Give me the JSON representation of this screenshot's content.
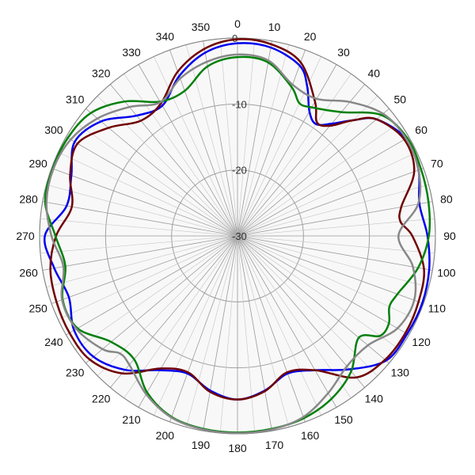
{
  "chart_data": {
    "type": "polar-line",
    "title": "",
    "angle_direction": "clockwise",
    "zero_angle": "top",
    "r_range": [
      -30,
      0
    ],
    "r_ticks": [
      -30,
      -20,
      -10,
      0
    ],
    "r_tick_labels": [
      "-30",
      "-20",
      "-10",
      "0"
    ],
    "angle_ticks": [
      0,
      10,
      20,
      30,
      40,
      50,
      60,
      70,
      80,
      90,
      100,
      110,
      120,
      130,
      140,
      150,
      160,
      170,
      180,
      190,
      200,
      210,
      220,
      230,
      240,
      250,
      260,
      270,
      280,
      290,
      300,
      310,
      320,
      330,
      340,
      350
    ],
    "angle_tick_labels": [
      "0",
      "10",
      "20",
      "30",
      "40",
      "50",
      "60",
      "70",
      "80",
      "90",
      "100",
      "110",
      "120",
      "130",
      "140",
      "150",
      "160",
      "170",
      "180",
      "190",
      "200",
      "210",
      "220",
      "230",
      "240",
      "250",
      "260",
      "270",
      "280",
      "290",
      "300",
      "310",
      "320",
      "330",
      "340",
      "350"
    ],
    "grid": true,
    "legend": "none",
    "series": [
      {
        "color": "#0000ee",
        "points": [
          [
            0,
            -0.8
          ],
          [
            10,
            -1.0
          ],
          [
            20,
            -2.5
          ],
          [
            25,
            -5.0
          ],
          [
            30,
            -8.2
          ],
          [
            35,
            -9.3
          ],
          [
            40,
            -7.8
          ],
          [
            45,
            -5.2
          ],
          [
            50,
            -2.5
          ],
          [
            60,
            -0.5
          ],
          [
            70,
            -0.8
          ],
          [
            80,
            -2.0
          ],
          [
            90,
            -1.2
          ],
          [
            100,
            -0.5
          ],
          [
            110,
            -0.2
          ],
          [
            120,
            -0.3
          ],
          [
            130,
            -0.6
          ],
          [
            140,
            -3.6
          ],
          [
            150,
            -6.5
          ],
          [
            160,
            -7.8
          ],
          [
            170,
            -6.2
          ],
          [
            180,
            -5.2
          ],
          [
            190,
            -6.2
          ],
          [
            200,
            -7.8
          ],
          [
            210,
            -6.5
          ],
          [
            220,
            -3.5
          ],
          [
            230,
            -1.5
          ],
          [
            240,
            -1.4
          ],
          [
            250,
            -2.8
          ],
          [
            260,
            -1.8
          ],
          [
            270,
            -0.8
          ],
          [
            280,
            -3.7
          ],
          [
            290,
            -3.2
          ],
          [
            300,
            -1.5
          ],
          [
            310,
            -3.0
          ],
          [
            320,
            -6.2
          ],
          [
            330,
            -7.2
          ],
          [
            340,
            -4.2
          ],
          [
            350,
            -1.8
          ]
        ]
      },
      {
        "color": "#700000",
        "points": [
          [
            0,
            -0.2
          ],
          [
            10,
            -0.5
          ],
          [
            20,
            -2.0
          ],
          [
            30,
            -6.5
          ],
          [
            35,
            -9.0
          ],
          [
            40,
            -8.2
          ],
          [
            45,
            -5.2
          ],
          [
            50,
            -2.5
          ],
          [
            60,
            -0.8
          ],
          [
            70,
            -1.5
          ],
          [
            80,
            -4.8
          ],
          [
            85,
            -5.2
          ],
          [
            90,
            -3.5
          ],
          [
            100,
            -1.3
          ],
          [
            110,
            -0.8
          ],
          [
            120,
            -0.6
          ],
          [
            130,
            -0.8
          ],
          [
            140,
            -2.0
          ],
          [
            150,
            -6.5
          ],
          [
            160,
            -8.0
          ],
          [
            170,
            -6.1
          ],
          [
            180,
            -5.2
          ],
          [
            190,
            -6.0
          ],
          [
            200,
            -8.0
          ],
          [
            210,
            -6.8
          ],
          [
            220,
            -2.8
          ],
          [
            230,
            -0.8
          ],
          [
            240,
            -0.6
          ],
          [
            250,
            -0.8
          ],
          [
            260,
            -1.2
          ],
          [
            270,
            -2.5
          ],
          [
            280,
            -4.5
          ],
          [
            290,
            -3.0
          ],
          [
            300,
            -2.0
          ],
          [
            310,
            -4.5
          ],
          [
            320,
            -7.2
          ],
          [
            330,
            -6.8
          ],
          [
            340,
            -3.5
          ],
          [
            350,
            -1.2
          ]
        ]
      },
      {
        "color": "#00800a",
        "points": [
          [
            0,
            -2.9
          ],
          [
            10,
            -3.3
          ],
          [
            20,
            -6.0
          ],
          [
            25,
            -7.8
          ],
          [
            30,
            -7.5
          ],
          [
            40,
            -5.5
          ],
          [
            50,
            -1.5
          ],
          [
            60,
            -0.3
          ],
          [
            70,
            -0.4
          ],
          [
            80,
            -0.6
          ],
          [
            90,
            -1.0
          ],
          [
            100,
            -2.2
          ],
          [
            110,
            -4.2
          ],
          [
            115,
            -4.6
          ],
          [
            120,
            -3.5
          ],
          [
            125,
            -3.6
          ],
          [
            130,
            -6.0
          ],
          [
            140,
            -3.2
          ],
          [
            150,
            -1.5
          ],
          [
            160,
            -0.6
          ],
          [
            170,
            -0.3
          ],
          [
            180,
            -0.2
          ],
          [
            190,
            -0.3
          ],
          [
            200,
            -0.8
          ],
          [
            210,
            -2.6
          ],
          [
            220,
            -5.6
          ],
          [
            230,
            -5.0
          ],
          [
            240,
            -2.0
          ],
          [
            250,
            -1.8
          ],
          [
            260,
            -3.5
          ],
          [
            270,
            -2.4
          ],
          [
            280,
            -0.4
          ],
          [
            290,
            -0.2
          ],
          [
            300,
            -0.3
          ],
          [
            310,
            -1.0
          ],
          [
            320,
            -3.4
          ],
          [
            330,
            -6.5
          ],
          [
            340,
            -6.6
          ],
          [
            350,
            -3.9
          ]
        ]
      },
      {
        "color": "#888888",
        "points": [
          [
            0,
            -2.5
          ],
          [
            10,
            -3.0
          ],
          [
            20,
            -5.6
          ],
          [
            30,
            -6.0
          ],
          [
            40,
            -3.5
          ],
          [
            50,
            -1.2
          ],
          [
            60,
            -0.5
          ],
          [
            70,
            -0.8
          ],
          [
            80,
            -2.2
          ],
          [
            90,
            -5.6
          ],
          [
            100,
            -3.0
          ],
          [
            110,
            -1.5
          ],
          [
            120,
            -2.0
          ],
          [
            130,
            -4.2
          ],
          [
            140,
            -4.2
          ],
          [
            150,
            -2.5
          ],
          [
            160,
            -0.8
          ],
          [
            170,
            -0.2
          ],
          [
            180,
            -0.1
          ],
          [
            190,
            -0.2
          ],
          [
            200,
            -0.7
          ],
          [
            210,
            -2.3
          ],
          [
            220,
            -4.5
          ],
          [
            225,
            -4.8
          ],
          [
            230,
            -3.3
          ],
          [
            240,
            -1.8
          ],
          [
            250,
            -1.7
          ],
          [
            260,
            -3.2
          ],
          [
            270,
            -1.8
          ],
          [
            280,
            -0.6
          ],
          [
            290,
            -0.3
          ],
          [
            300,
            -0.8
          ],
          [
            310,
            -2.3
          ],
          [
            320,
            -4.5
          ],
          [
            330,
            -6.6
          ],
          [
            340,
            -4.6
          ],
          [
            350,
            -3.2
          ]
        ]
      }
    ]
  }
}
